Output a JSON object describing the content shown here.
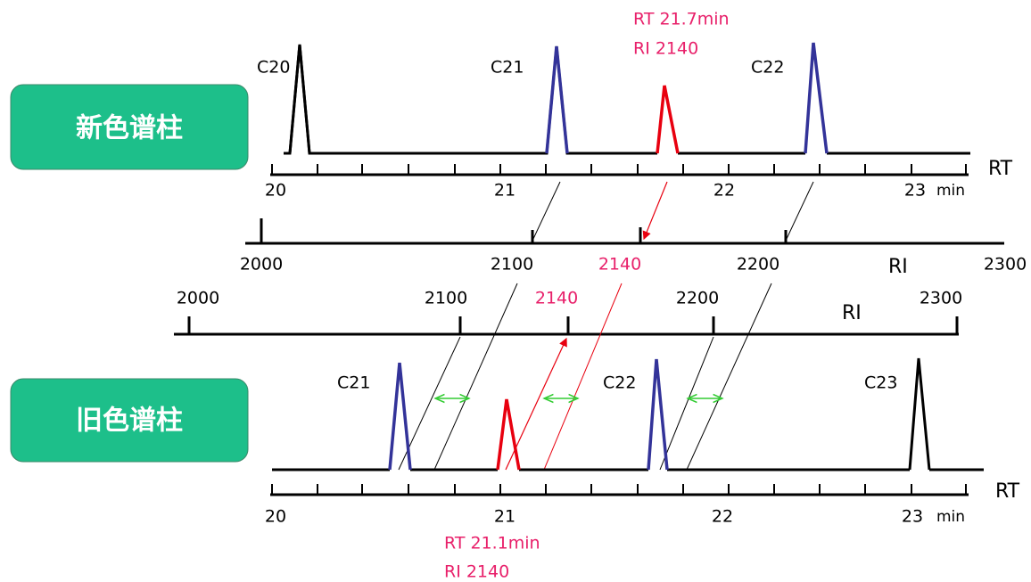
{
  "new_column": {
    "label": "新色谱柱",
    "peaks": [
      "C20",
      "C21",
      "C22"
    ],
    "annotation": [
      "RT  21.7min",
      "RI  2140"
    ],
    "rt_axis": {
      "ticks": [
        "20",
        "21",
        "22",
        "23"
      ],
      "unit": "min",
      "name": "RT"
    },
    "ri_axis": {
      "ticks": [
        "2000",
        "2100",
        "2140",
        "2200",
        "2300"
      ],
      "name": "RI"
    }
  },
  "old_column": {
    "label": "旧色谱柱",
    "peaks": [
      "C21",
      "C22",
      "C23"
    ],
    "annotation": [
      "RT  21.1min",
      "RI  2140"
    ],
    "rt_axis": {
      "ticks": [
        "20",
        "21",
        "22",
        "23"
      ],
      "unit": "min",
      "name": "RT"
    },
    "ri_axis": {
      "ticks": [
        "2000",
        "2100",
        "2140",
        "2200",
        "2300"
      ],
      "name": "RI"
    }
  }
}
